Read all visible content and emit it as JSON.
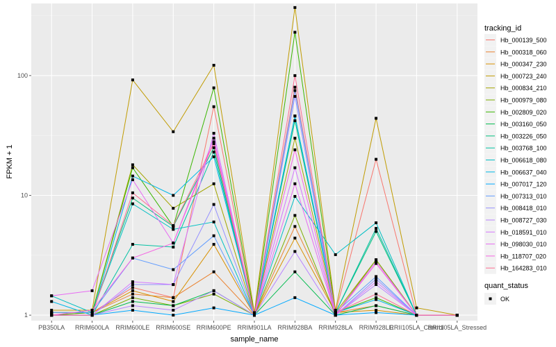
{
  "chart_data": {
    "type": "line",
    "xlabel": "sample_name",
    "ylabel": "FPKM + 1",
    "yscale": "log10",
    "ylim": [
      0.9,
      400
    ],
    "y_ticks": [
      1,
      10,
      100
    ],
    "y_tick_labels": [
      "1",
      "10",
      "100"
    ],
    "grid": true,
    "legend_placement": "right",
    "categories": [
      "PB350LA",
      "RRIM600LA",
      "RRIM600LE",
      "RRIM600SE",
      "RRIM600PE",
      "RRIM901LA",
      "RRIM928BA",
      "RRIM928LA",
      "RRIM928LE",
      "RRII105LA_Control",
      "RRII105LA_Stressed"
    ],
    "color_legend_title": "tracking_id",
    "shape_legend_title": "quant_status",
    "shape_legend_label": "OK",
    "series": [
      {
        "name": "Hb_000139_500",
        "color": "#F8766D",
        "values": [
          1.05,
          1.05,
          1.7,
          1.4,
          55,
          1.0,
          80,
          1.05,
          20,
          1.0,
          1.0
        ]
      },
      {
        "name": "Hb_000318_060",
        "color": "#EA8331",
        "values": [
          1.05,
          1.05,
          1.5,
          1.4,
          2.3,
          1.0,
          5.5,
          1.05,
          1.2,
          1.0,
          1.0
        ]
      },
      {
        "name": "Hb_000347_230",
        "color": "#D89000",
        "values": [
          1.0,
          1.05,
          1.6,
          1.3,
          3.9,
          1.0,
          4.4,
          1.05,
          1.1,
          1.0,
          1.0
        ]
      },
      {
        "name": "Hb_000723_240",
        "color": "#C09B00",
        "values": [
          1.1,
          1.1,
          92,
          34,
          122,
          1.05,
          370,
          1.1,
          44,
          1.15,
          1.0
        ]
      },
      {
        "name": "Hb_000834_210",
        "color": "#A3A500",
        "values": [
          1.05,
          1.05,
          18,
          7.8,
          12.5,
          1.0,
          30,
          1.05,
          2.9,
          1.0,
          1.0
        ]
      },
      {
        "name": "Hb_000979_080",
        "color": "#7CAE00",
        "values": [
          1.0,
          1.0,
          1.4,
          1.2,
          1.5,
          1.0,
          6.8,
          1.0,
          2.9,
          1.0,
          1.0
        ]
      },
      {
        "name": "Hb_002809_020",
        "color": "#39B600",
        "values": [
          1.0,
          1.05,
          17,
          5.5,
          79,
          1.0,
          230,
          1.05,
          1.4,
          1.0,
          1.0
        ]
      },
      {
        "name": "Hb_003160_050",
        "color": "#00BB4E",
        "values": [
          1.0,
          1.0,
          1.3,
          1.2,
          1.6,
          1.0,
          2.3,
          1.0,
          1.2,
          1.0,
          1.0
        ]
      },
      {
        "name": "Hb_003226_050",
        "color": "#00BF7D",
        "values": [
          1.05,
          1.05,
          9.5,
          5.5,
          25,
          1.0,
          42,
          1.05,
          5.0,
          1.0,
          1.0
        ]
      },
      {
        "name": "Hb_003768_100",
        "color": "#00C1A3",
        "values": [
          1.0,
          1.0,
          3.9,
          3.7,
          23,
          1.0,
          46,
          1.05,
          5.3,
          1.0,
          1.0
        ]
      },
      {
        "name": "Hb_006618_080",
        "color": "#00BFC4",
        "values": [
          1.45,
          1.05,
          8.5,
          5.2,
          6.0,
          1.0,
          9.8,
          3.2,
          5.9,
          1.0,
          1.0
        ]
      },
      {
        "name": "Hb_006637_040",
        "color": "#00B8E7",
        "values": [
          1.3,
          1.0,
          14.5,
          10,
          21,
          1.0,
          46,
          1.05,
          1.35,
          1.0,
          1.0
        ]
      },
      {
        "name": "Hb_007017_120",
        "color": "#00A9FF",
        "values": [
          1.0,
          1.0,
          1.1,
          1.0,
          1.15,
          1.0,
          1.4,
          1.0,
          1.05,
          1.0,
          1.0
        ]
      },
      {
        "name": "Hb_007313_010",
        "color": "#619CFF",
        "values": [
          1.05,
          1.05,
          3.0,
          2.4,
          4.6,
          1.0,
          75,
          1.05,
          2.1,
          1.0,
          1.0
        ]
      },
      {
        "name": "Hb_008418_010",
        "color": "#9590FF",
        "values": [
          1.0,
          1.0,
          1.8,
          1.8,
          8.4,
          1.0,
          67,
          1.0,
          2.0,
          1.0,
          1.0
        ]
      },
      {
        "name": "Hb_008727_030",
        "color": "#B983FF",
        "values": [
          1.0,
          1.0,
          1.2,
          1.1,
          1.6,
          1.0,
          3.4,
          1.0,
          1.8,
          1.0,
          1.0
        ]
      },
      {
        "name": "Hb_018591_010",
        "color": "#D376FF",
        "values": [
          1.0,
          1.0,
          1.9,
          1.8,
          33,
          1.0,
          17,
          1.0,
          1.9,
          1.0,
          1.0
        ]
      },
      {
        "name": "Hb_098030_010",
        "color": "#E76BF3",
        "values": [
          1.45,
          1.6,
          13.5,
          4.0,
          30,
          1.0,
          12.5,
          1.0,
          2.8,
          1.0,
          1.0
        ]
      },
      {
        "name": "Hb_118707_020",
        "color": "#F564E3",
        "values": [
          1.0,
          1.1,
          3.0,
          4.0,
          28,
          1.0,
          24,
          1.0,
          2.7,
          1.0,
          1.0
        ]
      },
      {
        "name": "Hb_164283_010",
        "color": "#FF6C91",
        "values": [
          1.0,
          1.0,
          10.5,
          5.6,
          27,
          1.0,
          100,
          1.05,
          1.5,
          1.0,
          1.0
        ]
      }
    ]
  }
}
